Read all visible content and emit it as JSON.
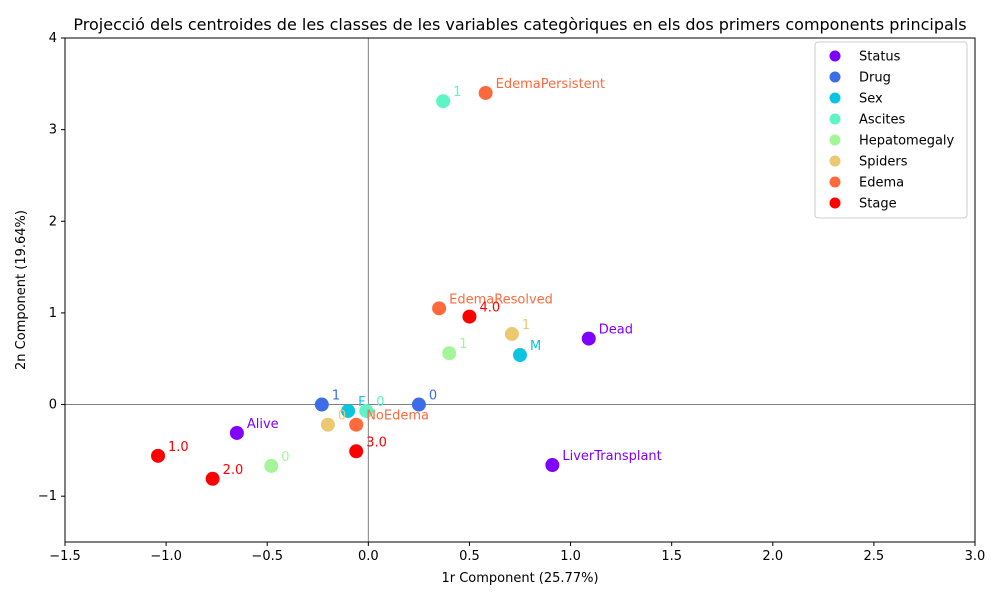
{
  "chart_data": {
    "type": "scatter",
    "title": "Projecció dels centroides de les classes de les variables categòriques en els dos primers components principals",
    "xlabel": "1r Component (25.77%)",
    "ylabel": "2n Component (19.64%)",
    "xlim": [
      -1.5,
      3.0
    ],
    "ylim": [
      -1.5,
      4.0
    ],
    "xticks": [
      "−1.5",
      "−1.0",
      "−0.5",
      "0.0",
      "0.5",
      "1.0",
      "1.5",
      "2.0",
      "2.5",
      "3.0"
    ],
    "yticks": [
      "−1",
      "0",
      "1",
      "2",
      "3",
      "4"
    ],
    "reference_lines": {
      "x": 0,
      "y": 0
    },
    "legend_position": "top-right",
    "series": [
      {
        "name": "Status",
        "color": "#8000ff",
        "points": [
          {
            "x": -0.65,
            "y": -0.31,
            "label": "Alive"
          },
          {
            "x": 1.09,
            "y": 0.72,
            "label": "Dead"
          },
          {
            "x": 0.91,
            "y": -0.66,
            "label": "LiverTransplant"
          }
        ]
      },
      {
        "name": "Drug",
        "color": "#3c6ce8",
        "points": [
          {
            "x": -0.23,
            "y": 0.0,
            "label": "1"
          },
          {
            "x": 0.25,
            "y": 0.0,
            "label": "0"
          }
        ]
      },
      {
        "name": "Sex",
        "color": "#0bc4e0",
        "points": [
          {
            "x": -0.1,
            "y": -0.07,
            "label": "F"
          },
          {
            "x": 0.75,
            "y": 0.54,
            "label": "M"
          }
        ]
      },
      {
        "name": "Ascites",
        "color": "#5ef4c6",
        "points": [
          {
            "x": -0.01,
            "y": -0.07,
            "label": "0"
          },
          {
            "x": 0.37,
            "y": 3.31,
            "label": "1"
          }
        ]
      },
      {
        "name": "Hepatomegaly",
        "color": "#a4f59a",
        "points": [
          {
            "x": -0.48,
            "y": -0.67,
            "label": "0"
          },
          {
            "x": 0.4,
            "y": 0.56,
            "label": "1"
          }
        ]
      },
      {
        "name": "Spiders",
        "color": "#ecc870",
        "points": [
          {
            "x": -0.2,
            "y": -0.22,
            "label": "0"
          },
          {
            "x": 0.71,
            "y": 0.77,
            "label": "1"
          }
        ]
      },
      {
        "name": "Edema",
        "color": "#ff6a3c",
        "points": [
          {
            "x": -0.06,
            "y": -0.22,
            "label": "NoEdema"
          },
          {
            "x": 0.35,
            "y": 1.05,
            "label": "EdemaResolved"
          },
          {
            "x": 0.58,
            "y": 3.4,
            "label": "EdemaPersistent"
          }
        ]
      },
      {
        "name": "Stage",
        "color": "#ff0000",
        "points": [
          {
            "x": -1.04,
            "y": -0.56,
            "label": "1.0"
          },
          {
            "x": -0.77,
            "y": -0.81,
            "label": "2.0"
          },
          {
            "x": -0.06,
            "y": -0.51,
            "label": "3.0"
          },
          {
            "x": 0.5,
            "y": 0.96,
            "label": "4.0"
          }
        ]
      }
    ]
  }
}
